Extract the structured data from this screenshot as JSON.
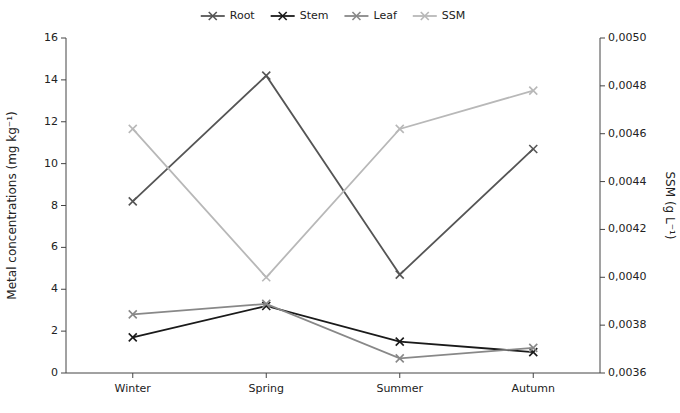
{
  "chart_data": {
    "type": "line",
    "categories": [
      "Winter",
      "Spring",
      "Summer",
      "Autumn"
    ],
    "series": [
      {
        "name": "Root",
        "color": "#555555",
        "marker": "x",
        "values": [
          8.2,
          14.2,
          4.7,
          10.7
        ]
      },
      {
        "name": "Stem",
        "color": "#1a1a1a",
        "marker": "x",
        "values": [
          1.7,
          3.2,
          1.5,
          1.0
        ]
      },
      {
        "name": "Leaf",
        "color": "#888888",
        "marker": "x",
        "values": [
          2.8,
          3.3,
          0.7,
          1.2
        ]
      },
      {
        "name": "SSM",
        "color": "#b8b8b8",
        "marker": "x",
        "axis": "y2",
        "values": [
          0.00462,
          0.004,
          0.00462,
          0.00478
        ]
      }
    ],
    "ylabel": "Metal concentrations (mg kg⁻¹)",
    "y2label": "SSM (g L⁻¹)",
    "ylim": [
      0,
      16
    ],
    "yticks": [
      0,
      2,
      4,
      6,
      8,
      10,
      12,
      14,
      16
    ],
    "y2lim": [
      0.0036,
      0.005
    ],
    "y2ticks": [
      {
        "value": 0.0036,
        "label": "0,0036"
      },
      {
        "value": 0.0038,
        "label": "0,0038"
      },
      {
        "value": 0.004,
        "label": "0,0040"
      },
      {
        "value": 0.0042,
        "label": "0,0042"
      },
      {
        "value": 0.0044,
        "label": "0,0044"
      },
      {
        "value": 0.0046,
        "label": "0,0046"
      },
      {
        "value": 0.0048,
        "label": "0,0048"
      },
      {
        "value": 0.005,
        "label": "0,0050"
      }
    ],
    "legend": "top",
    "grid": false
  }
}
